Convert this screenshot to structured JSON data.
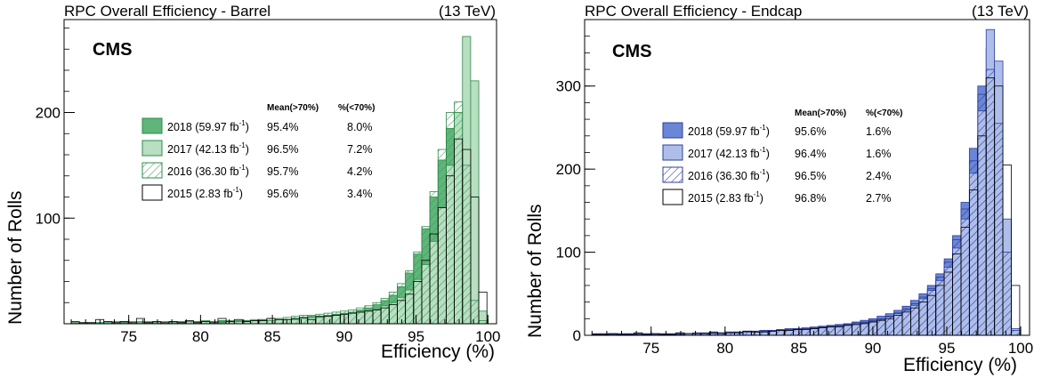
{
  "chart_data": [
    {
      "type": "histogram",
      "title": "RPC Overall Efficiency - Barrel",
      "energy": "(13 TeV)",
      "experiment": "CMS",
      "xlabel": "Efficiency (%)",
      "ylabel": "Number of Rolls",
      "xlim": [
        70.5,
        100.6
      ],
      "ylim": [
        0,
        288
      ],
      "xticks": [
        "75",
        "80",
        "85",
        "90",
        "95",
        "100"
      ],
      "yticks": [
        "100",
        "200"
      ],
      "legend_header": {
        "mean": "Mean(>70%)",
        "frac": "%(<70%)"
      },
      "color": "#3fa05a",
      "series": [
        {
          "name": "2018 (59.97 fb",
          "sup": "-1",
          "suffix": ")",
          "mean": "95.4%",
          "frac": "8.0%",
          "style": "solid-dark",
          "values": [
            1,
            1,
            1,
            1,
            1,
            1,
            2,
            1,
            1,
            2,
            1,
            1,
            2,
            2,
            1,
            2,
            2,
            2,
            3,
            2,
            2,
            3,
            3,
            4,
            3,
            3,
            4,
            5,
            6,
            7,
            7,
            8,
            9,
            10,
            11,
            13,
            15,
            18,
            22,
            27,
            35,
            48,
            66,
            90,
            120,
            155,
            185,
            200,
            170,
            40,
            5,
            0
          ]
        },
        {
          "name": "2017 (42.13 fb",
          "sup": "-1",
          "suffix": ")",
          "mean": "96.5%",
          "frac": "7.2%",
          "style": "solid-light",
          "values": [
            1,
            1,
            1,
            1,
            1,
            2,
            1,
            1,
            2,
            1,
            1,
            1,
            2,
            1,
            2,
            1,
            2,
            2,
            1,
            2,
            2,
            2,
            3,
            3,
            3,
            4,
            4,
            4,
            5,
            6,
            6,
            7,
            8,
            9,
            10,
            11,
            12,
            14,
            17,
            20,
            25,
            32,
            42,
            56,
            78,
            110,
            150,
            200,
            272,
            230,
            12,
            0
          ]
        },
        {
          "name": "2016 (36.30 fb",
          "sup": "-1",
          "suffix": ")",
          "mean": "95.7%",
          "frac": "4.2%",
          "style": "hatched",
          "values": [
            1,
            1,
            1,
            1,
            2,
            1,
            1,
            2,
            1,
            1,
            2,
            2,
            1,
            2,
            2,
            2,
            3,
            2,
            2,
            3,
            3,
            3,
            4,
            4,
            5,
            5,
            6,
            7,
            8,
            8,
            9,
            10,
            11,
            12,
            13,
            15,
            17,
            20,
            24,
            30,
            38,
            50,
            68,
            92,
            125,
            165,
            200,
            210,
            150,
            22,
            3,
            0
          ]
        },
        {
          "name": "2015 (2.83 fb",
          "sup": "-1",
          "suffix": ")",
          "mean": "95.6%",
          "frac": "3.4%",
          "style": "outline",
          "values": [
            2,
            1,
            1,
            4,
            2,
            1,
            2,
            1,
            5,
            1,
            2,
            1,
            2,
            1,
            3,
            1,
            2,
            1,
            5,
            2,
            4,
            2,
            3,
            3,
            5,
            4,
            4,
            5,
            6,
            4,
            7,
            7,
            8,
            9,
            10,
            11,
            12,
            13,
            15,
            18,
            22,
            28,
            40,
            60,
            85,
            110,
            140,
            175,
            165,
            120,
            30,
            0
          ]
        }
      ]
    },
    {
      "type": "histogram",
      "title": "RPC Overall Efficiency - Endcap",
      "energy": "(13 TeV)",
      "experiment": "CMS",
      "xlabel": "Efficiency (%)",
      "ylabel": "Number of Rolls",
      "xlim": [
        70.5,
        100.6
      ],
      "ylim": [
        0,
        380
      ],
      "xticks": [
        "75",
        "80",
        "85",
        "90",
        "95",
        "100"
      ],
      "yticks": [
        "0",
        "100",
        "200",
        "300"
      ],
      "legend_header": {
        "mean": "Mean(>70%)",
        "frac": "%(<70%)"
      },
      "color": "#3b5bc4",
      "series": [
        {
          "name": "2018 (59.97 fb",
          "sup": "-1",
          "suffix": ")",
          "mean": "95.6%",
          "frac": "1.6%",
          "style": "solid-dark",
          "values": [
            2,
            1,
            2,
            1,
            1,
            2,
            1,
            1,
            2,
            1,
            2,
            2,
            2,
            3,
            3,
            3,
            4,
            4,
            5,
            5,
            6,
            6,
            7,
            8,
            8,
            9,
            10,
            11,
            12,
            13,
            14,
            16,
            18,
            20,
            23,
            26,
            30,
            35,
            42,
            50,
            60,
            74,
            92,
            120,
            160,
            225,
            300,
            345,
            230,
            70,
            5,
            0
          ]
        },
        {
          "name": "2017 (42.13 fb",
          "sup": "-1",
          "suffix": ")",
          "mean": "96.4%",
          "frac": "1.6%",
          "style": "solid-light",
          "values": [
            1,
            1,
            1,
            2,
            1,
            1,
            1,
            2,
            1,
            1,
            1,
            2,
            2,
            2,
            2,
            3,
            3,
            3,
            4,
            4,
            5,
            5,
            6,
            6,
            7,
            8,
            8,
            9,
            10,
            11,
            12,
            13,
            15,
            17,
            19,
            22,
            26,
            30,
            36,
            44,
            54,
            66,
            82,
            105,
            140,
            195,
            270,
            368,
            330,
            140,
            8,
            0
          ]
        },
        {
          "name": "2016 (36.30 fb",
          "sup": "-1",
          "suffix": ")",
          "mean": "96.5%",
          "frac": "2.4%",
          "style": "hatched",
          "values": [
            1,
            2,
            1,
            1,
            2,
            1,
            2,
            1,
            1,
            2,
            2,
            2,
            3,
            2,
            3,
            3,
            4,
            4,
            4,
            5,
            5,
            6,
            6,
            7,
            8,
            8,
            9,
            10,
            11,
            12,
            13,
            15,
            16,
            18,
            20,
            23,
            27,
            32,
            38,
            46,
            56,
            70,
            88,
            115,
            152,
            210,
            290,
            320,
            255,
            100,
            6,
            0
          ]
        },
        {
          "name": "2015 (2.83 fb",
          "sup": "-1",
          "suffix": ")",
          "mean": "96.8%",
          "frac": "2.7%",
          "style": "outline",
          "values": [
            1,
            1,
            2,
            1,
            1,
            3,
            1,
            2,
            1,
            1,
            3,
            2,
            2,
            2,
            4,
            2,
            3,
            3,
            5,
            4,
            4,
            5,
            6,
            6,
            7,
            7,
            8,
            9,
            10,
            10,
            12,
            13,
            14,
            16,
            18,
            20,
            24,
            28,
            33,
            40,
            48,
            60,
            76,
            98,
            130,
            175,
            240,
            310,
            300,
            205,
            60,
            0
          ]
        }
      ]
    }
  ]
}
